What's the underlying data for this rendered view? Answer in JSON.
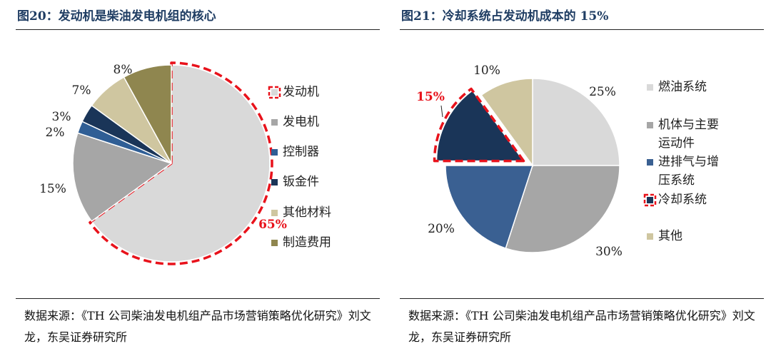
{
  "left": {
    "title": "图20：发动机是柴油发电机组的核心",
    "source": "数据来源：《TH 公司柴油发电机组产品市场营销策略优化研究》刘文龙，东吴证券研究所",
    "chart_data": {
      "type": "pie",
      "highlighted": "发动机",
      "legend_position": "right",
      "slices": [
        {
          "label": "发动机",
          "value": 65,
          "display": "65%",
          "color": "#d9d9d9"
        },
        {
          "label": "发电机",
          "value": 15,
          "display": "15%",
          "color": "#a6a6a6"
        },
        {
          "label": "控制器",
          "value": 2,
          "display": "2%",
          "color": "#2f5e95"
        },
        {
          "label": "钣金件",
          "value": 3,
          "display": "3%",
          "color": "#1a3558"
        },
        {
          "label": "其他材料",
          "value": 7,
          "display": "7%",
          "color": "#cfc6a0"
        },
        {
          "label": "制造费用",
          "value": 8,
          "display": "8%",
          "color": "#8f864f"
        }
      ]
    }
  },
  "right": {
    "title": "图21：冷却系统占发动机成本的 15%",
    "source": "数据来源：《TH 公司柴油发电机组产品市场营销策略优化研究》刘文龙，东吴证券研究所",
    "chart_data": {
      "type": "pie",
      "highlighted": "冷却系统",
      "legend_position": "right",
      "slices": [
        {
          "label": "燃油系统",
          "value": 25,
          "display": "25%",
          "color": "#d9d9d9"
        },
        {
          "label": "机体与主要运动件",
          "value": 30,
          "display": "30%",
          "color": "#a6a6a6"
        },
        {
          "label": "进排气与增压系统",
          "value": 20,
          "display": "20%",
          "color": "#3a6092"
        },
        {
          "label": "冷却系统",
          "value": 15,
          "display": "15%",
          "color": "#1a3558"
        },
        {
          "label": "其他",
          "value": 10,
          "display": "10%",
          "color": "#cfc6a0"
        }
      ]
    }
  }
}
